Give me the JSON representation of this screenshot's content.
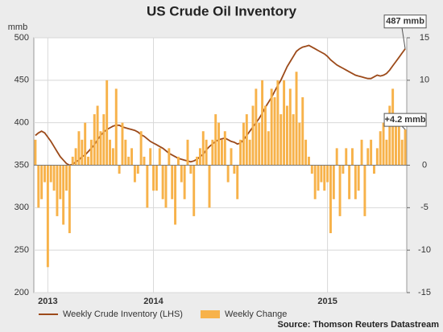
{
  "chart_data": {
    "type": "bar-line",
    "title": "US Crude Oil Inventory",
    "y_label": "mmb",
    "source": "Source:  Thomson Reuters Datastream",
    "categories": [
      null,
      null,
      null,
      null,
      "2013",
      null,
      null,
      null,
      null,
      null,
      null,
      null,
      null,
      null,
      null,
      null,
      null,
      null,
      null,
      null,
      null,
      null,
      null,
      null,
      null,
      null,
      null,
      null,
      null,
      null,
      null,
      null,
      null,
      null,
      null,
      null,
      null,
      null,
      "2014",
      null,
      null,
      null,
      null,
      null,
      null,
      null,
      null,
      null,
      null,
      null,
      null,
      null,
      null,
      null,
      null,
      null,
      null,
      null,
      null,
      null,
      null,
      null,
      null,
      null,
      null,
      null,
      null,
      null,
      null,
      null,
      null,
      null,
      null,
      null,
      null,
      null,
      null,
      null,
      null,
      null,
      null,
      null,
      null,
      null,
      null,
      null,
      null,
      null,
      null,
      null,
      null,
      null,
      null,
      null,
      "2015",
      null,
      null,
      null,
      null,
      null,
      null,
      null,
      null,
      null,
      null,
      null,
      null,
      null,
      null,
      null,
      null,
      null,
      null,
      null,
      null,
      null,
      null,
      null,
      null,
      null
    ],
    "series": [
      {
        "name": "Weekly Crude Inventory (LHS)",
        "type": "line",
        "color": "#9c4a1a",
        "axis": "y",
        "values": [
          385,
          388,
          390,
          388,
          383,
          378,
          372,
          366,
          360,
          356,
          352,
          350,
          351,
          354,
          356,
          360,
          362,
          366,
          370,
          374,
          380,
          385,
          389,
          392,
          394,
          396,
          397,
          397,
          395,
          394,
          393,
          392,
          391,
          389,
          386,
          384,
          381,
          378,
          376,
          374,
          372,
          370,
          367,
          364,
          362,
          360,
          358,
          357,
          356,
          355,
          354,
          355,
          357,
          360,
          363,
          368,
          372,
          375,
          378,
          380,
          381,
          382,
          380,
          378,
          377,
          375,
          376,
          380,
          385,
          390,
          395,
          400,
          405,
          411,
          418,
          424,
          430,
          437,
          444,
          450,
          458,
          466,
          472,
          478,
          484,
          487,
          489,
          490,
          491,
          489,
          487,
          485,
          483,
          481,
          478,
          474,
          471,
          468,
          466,
          464,
          462,
          460,
          458,
          456,
          455,
          454,
          453,
          452,
          452,
          454,
          456,
          455,
          456,
          458,
          462,
          467,
          472,
          477,
          482,
          487
        ]
      },
      {
        "name": "Weekly Change",
        "type": "bar",
        "color": "#f7b24a",
        "axis": "y2",
        "values": [
          3,
          -5,
          -4,
          -2,
          -12,
          -2,
          -3,
          -6,
          -4,
          -7,
          -3,
          -8,
          1,
          2,
          4,
          3,
          5,
          1,
          3,
          6,
          7,
          4,
          6,
          10,
          3,
          2,
          9,
          -1,
          5,
          3,
          1,
          2,
          -2,
          -1,
          4,
          1,
          -5,
          2,
          -3,
          -3,
          2,
          -4,
          -5,
          2,
          -4,
          -7,
          1,
          -2,
          -4,
          3,
          -1,
          -6,
          1,
          2,
          4,
          3,
          -5,
          3,
          6,
          5,
          3,
          4,
          -2,
          2,
          -1,
          -4,
          3,
          5,
          6,
          3,
          7,
          9,
          5,
          10,
          7,
          4,
          9,
          8,
          10,
          6,
          10,
          7,
          9,
          6,
          11,
          5,
          8,
          3,
          1,
          -1,
          -4,
          -3,
          -2,
          -3,
          -2,
          -8,
          -4,
          2,
          -6,
          -1,
          2,
          -4,
          2,
          -4,
          -3,
          3,
          -6,
          2,
          3,
          -1,
          2,
          4,
          5,
          3,
          7,
          9,
          5,
          6,
          3,
          4.2
        ]
      }
    ],
    "annotations": [
      {
        "text": "487 mmb",
        "series": 0
      },
      {
        "text": "+4.2 mmb",
        "series": 1
      }
    ],
    "ylim": [
      200,
      500
    ],
    "yticks": [
      200,
      250,
      300,
      350,
      400,
      450,
      500
    ],
    "y2lim": [
      -15,
      15
    ],
    "y2ticks": [
      -15,
      -10,
      -5,
      0,
      5,
      10,
      15
    ],
    "grid": true
  }
}
